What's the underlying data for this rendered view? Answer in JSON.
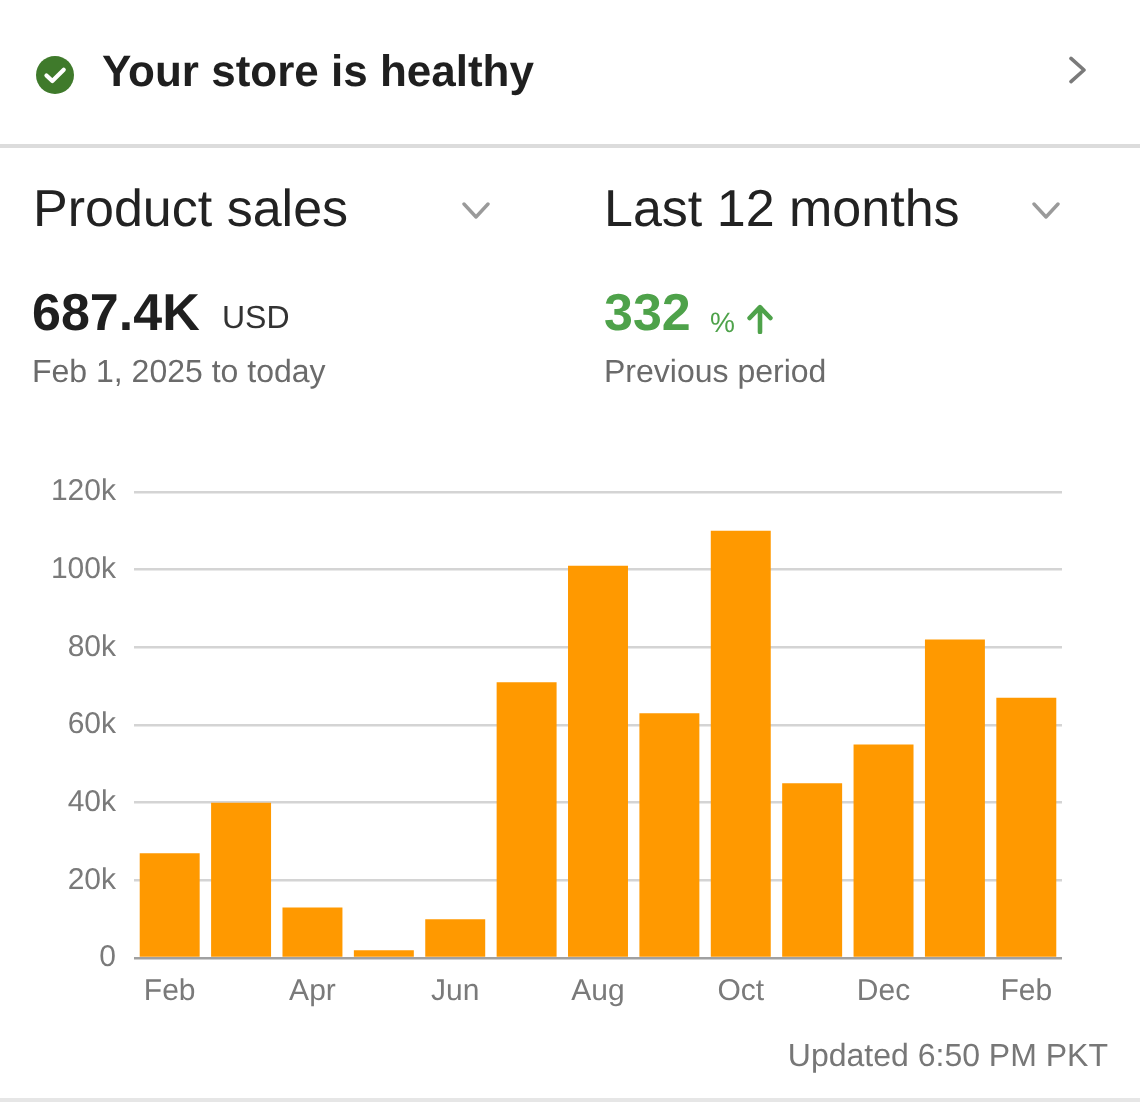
{
  "chart_data": {
    "type": "bar",
    "title": "Product sales",
    "subtitle": "Last 12 months",
    "annotations": [
      "Your store is healthy",
      "687.4K",
      "USD",
      "Feb 1, 2025 to today",
      "332",
      "%",
      "Previous period",
      "Updated 6:50 PM PKT"
    ],
    "categories": [
      "Feb",
      null,
      "Apr",
      null,
      "Jun",
      null,
      "Aug",
      null,
      "Oct",
      null,
      "Dec",
      null,
      "Feb"
    ],
    "values": [
      27000,
      40000,
      13000,
      2000,
      10000,
      71000,
      101000,
      63000,
      110000,
      45000,
      55000,
      82000,
      67000
    ],
    "color": "#ff9900",
    "ylim": [
      0,
      120000
    ],
    "yticks": [
      0,
      {
        "value": 20000,
        "label": "20k"
      },
      {
        "value": 40000,
        "label": "40k"
      },
      {
        "value": 60000,
        "label": "60k"
      },
      {
        "value": 80000,
        "label": "80k"
      },
      {
        "value": 100000,
        "label": "100k"
      },
      {
        "value": 120000,
        "label": "120k"
      }
    ],
    "grid": "y"
  }
}
